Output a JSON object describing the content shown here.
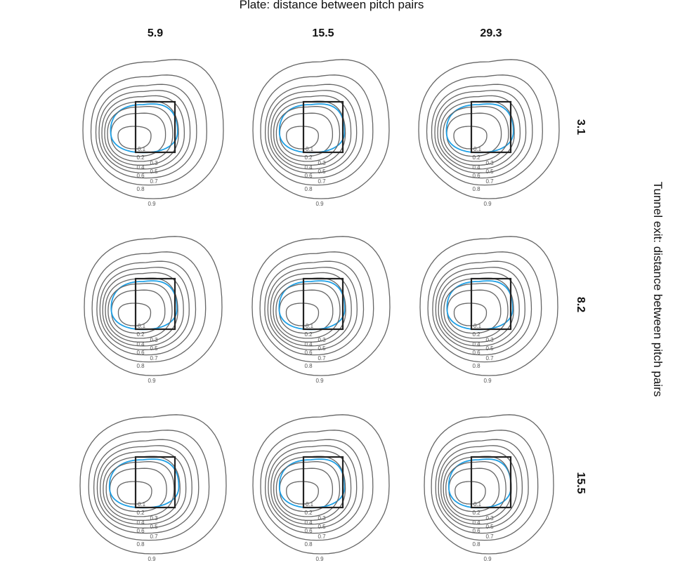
{
  "chart_data": {
    "type": "contour",
    "title": "Plate: distance between pitch pairs",
    "right_label": "Tunnel exit: distance between pitch pairs",
    "col_labels": [
      "5.9",
      "15.5",
      "29.3"
    ],
    "row_labels": [
      "3.1",
      "8.2",
      "15.5"
    ],
    "levels": [
      "0.1",
      "0.2",
      "0.3",
      "0.4",
      "0.5",
      "0.6",
      "0.7",
      "0.8",
      "0.9"
    ],
    "contour_color": "#666666",
    "highlight_color": "#1ea0e6",
    "zone_color": "#222222",
    "grid": false
  }
}
